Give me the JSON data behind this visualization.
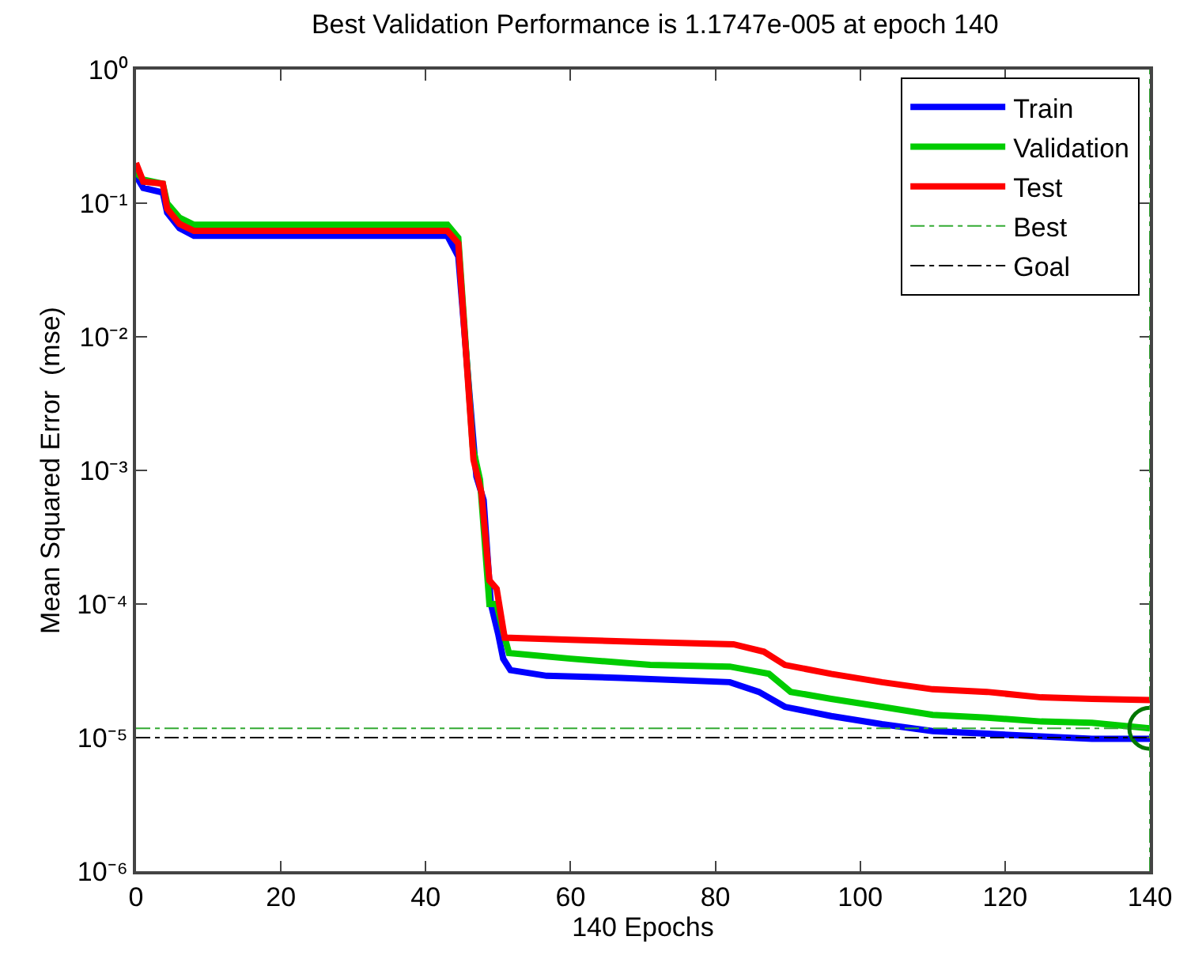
{
  "chart_data": {
    "type": "line",
    "title": "Best Validation Performance is 1.1747e-005 at epoch 140",
    "xlabel": "140 Epochs",
    "ylabel": "Mean Squared Error  (mse)",
    "log": "y",
    "legend": "top right",
    "line_style": "solid",
    "marker": "none",
    "xlim": [
      0,
      140
    ],
    "xticks": [
      0,
      20,
      40,
      60,
      80,
      100,
      120,
      140
    ],
    "ylim": [
      1e-06,
      1
    ],
    "yticks": [
      {
        "value": 1e-06,
        "label": "10⁻⁶"
      },
      {
        "value": 1e-05,
        "label": "10⁻⁵"
      },
      {
        "value": 0.0001,
        "label": "10⁻⁴"
      },
      {
        "value": 0.001,
        "label": "10⁻³"
      },
      {
        "value": 0.01,
        "label": "10⁻²"
      },
      {
        "value": 0.1,
        "label": "10⁻¹"
      },
      {
        "value": 1,
        "label": "10⁰"
      }
    ],
    "series": [
      {
        "name": "Train",
        "color": "#0000ff",
        "x": [
          0,
          1,
          3.7,
          4.3,
          6,
          8,
          43,
          44.5,
          46,
          47,
          48,
          49,
          50,
          50.7,
          51.7,
          56.7,
          67,
          82,
          86,
          89.6,
          96,
          103,
          110,
          117.5,
          125,
          132,
          140
        ],
        "values": [
          0.16,
          0.13,
          0.12,
          0.085,
          0.065,
          0.057,
          0.057,
          0.04,
          0.004,
          0.0009,
          0.0006,
          0.0001,
          6e-05,
          3.9e-05,
          3.2e-05,
          2.9e-05,
          2.8e-05,
          2.6e-05,
          2.2e-05,
          1.7e-05,
          1.45e-05,
          1.26e-05,
          1.12e-05,
          1.07e-05,
          1.02e-05,
          9.8e-06,
          9.8e-06
        ]
      },
      {
        "name": "Validation",
        "color": "#00cc00",
        "x": [
          0,
          1,
          3.7,
          4.3,
          6,
          8,
          43,
          44.5,
          46.5,
          47.5,
          48.8,
          49.8,
          50.7,
          51.5,
          60,
          71,
          82,
          87.4,
          90.4,
          96,
          103,
          110,
          117.5,
          125,
          132,
          140
        ],
        "values": [
          0.17,
          0.15,
          0.14,
          0.1,
          0.078,
          0.069,
          0.069,
          0.055,
          0.0015,
          0.00085,
          0.0001,
          0.0001,
          6.2e-05,
          4.3e-05,
          3.9e-05,
          3.5e-05,
          3.4e-05,
          3e-05,
          2.2e-05,
          1.95e-05,
          1.7e-05,
          1.48e-05,
          1.41e-05,
          1.32e-05,
          1.29e-05,
          1.1747e-05
        ]
      },
      {
        "name": "Test",
        "color": "#ff0000",
        "x": [
          0,
          1,
          3.7,
          4.3,
          6,
          8,
          43,
          44.5,
          46.6,
          47.7,
          48.8,
          49.8,
          50.9,
          60,
          70,
          82.5,
          86.7,
          89.6,
          96,
          103,
          110,
          117.5,
          125,
          132,
          140
        ],
        "values": [
          0.2,
          0.145,
          0.14,
          0.091,
          0.07,
          0.062,
          0.062,
          0.05,
          0.0012,
          0.00068,
          0.00015,
          0.00013,
          5.6e-05,
          5.4e-05,
          5.2e-05,
          5e-05,
          4.4e-05,
          3.5e-05,
          3e-05,
          2.6e-05,
          2.3e-05,
          2.2e-05,
          2e-05,
          1.95e-05,
          1.91e-05
        ]
      },
      {
        "type": "scatter",
        "marker": "circle",
        "color": "#007700",
        "x": [
          140
        ],
        "values": [
          1.1747e-05
        ]
      }
    ],
    "ref_lines": [
      {
        "axis": "y",
        "value": 1.1747e-05,
        "label": "Best",
        "color": "#33aa33",
        "line_style": "dashdot"
      },
      {
        "axis": "x",
        "value": 140,
        "color": "#33aa33",
        "line_style": "dashdot"
      },
      {
        "axis": "y",
        "value": 1e-05,
        "label": "Goal",
        "color": "#000000",
        "line_style": "dashdot"
      }
    ]
  }
}
